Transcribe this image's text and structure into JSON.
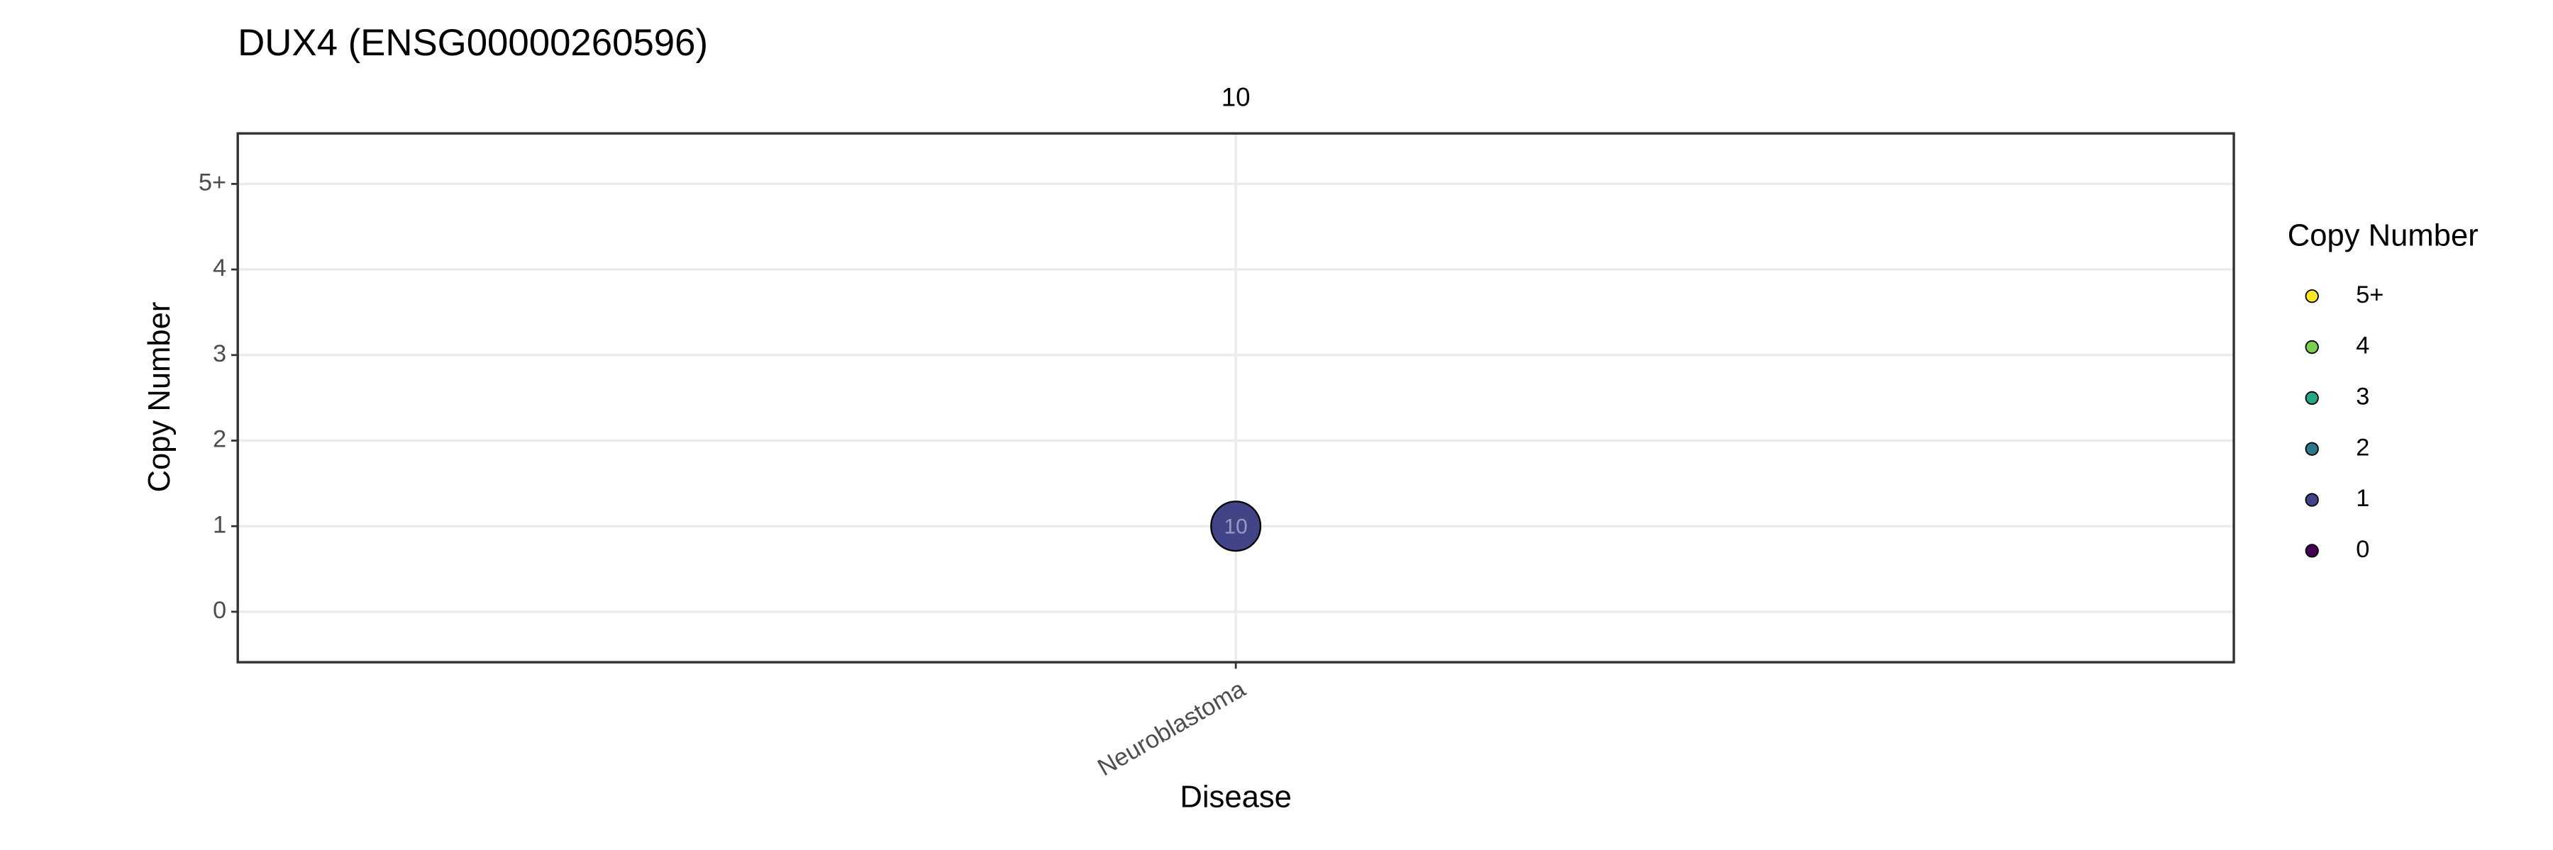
{
  "chart_data": {
    "type": "scatter",
    "title": "DUX4 (ENSG00000260596)",
    "x_label": "Disease",
    "y_label": "Copy Number",
    "categories": [
      "Neuroblastoma"
    ],
    "top_labels": [
      10
    ],
    "series": [
      {
        "values": [
          1
        ],
        "sizes": [
          10
        ],
        "color": "#414487"
      }
    ],
    "ylim": [
      -0.59,
      5.59
    ],
    "yticks": [
      0,
      1,
      2,
      3,
      4,
      {
        "value": 5,
        "label": "5+"
      }
    ],
    "grid": true,
    "legend": {
      "position": "right",
      "title": "Copy Number",
      "entries": [
        {
          "label": "5+",
          "color": "#fde725"
        },
        {
          "label": "4",
          "color": "#7ad151"
        },
        {
          "label": "3",
          "color": "#22a884"
        },
        {
          "label": "2",
          "color": "#2a788e"
        },
        {
          "label": "1",
          "color": "#414487"
        },
        {
          "label": "0",
          "color": "#440154"
        }
      ]
    }
  }
}
